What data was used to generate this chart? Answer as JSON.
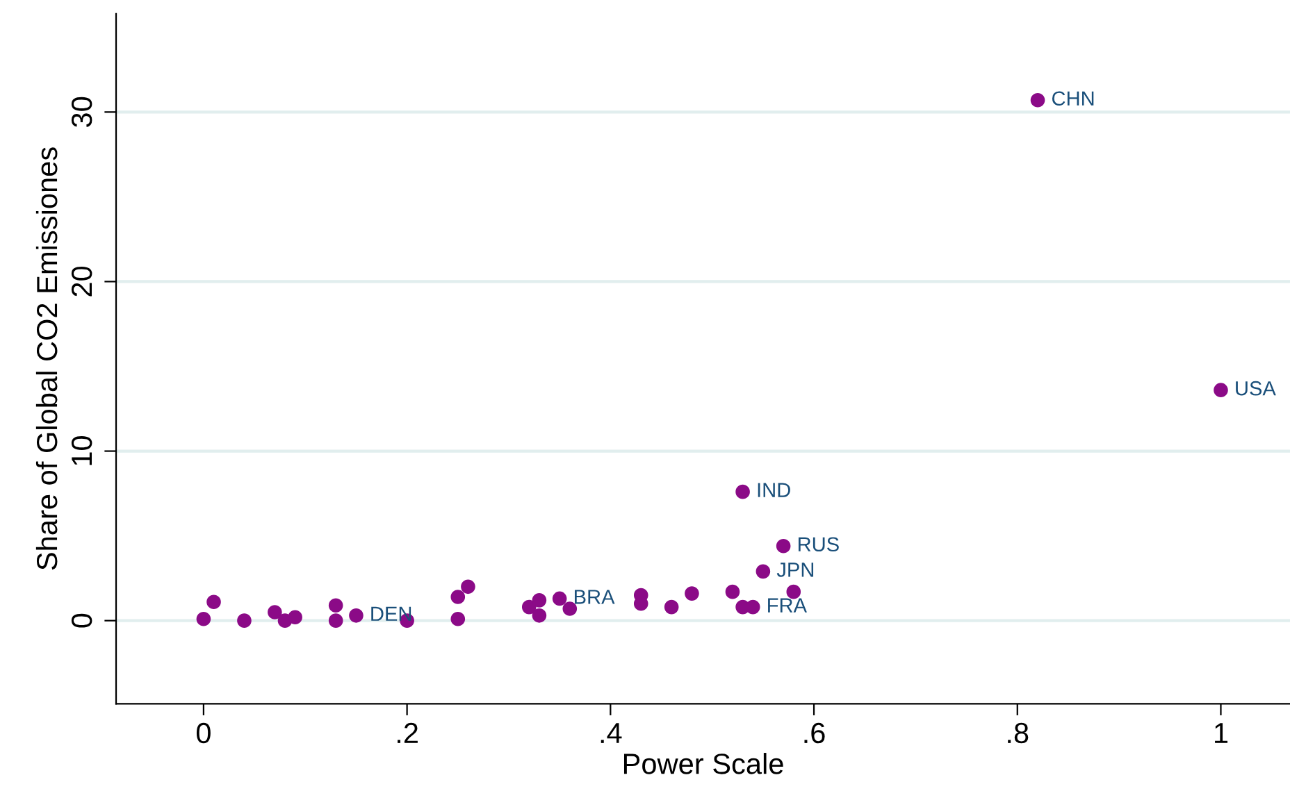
{
  "chart_data": {
    "type": "scatter",
    "xlabel": "Power Scale",
    "ylabel": "Share of Global CO2 Emissiones",
    "x": [
      0.0,
      0.01,
      0.04,
      0.07,
      0.08,
      0.09,
      0.13,
      0.13,
      0.15,
      0.2,
      0.25,
      0.25,
      0.26,
      0.32,
      0.33,
      0.33,
      0.35,
      0.36,
      0.43,
      0.43,
      0.46,
      0.48,
      0.52,
      0.53,
      0.54,
      0.53,
      0.57,
      0.55,
      0.58,
      0.82,
      1.0
    ],
    "series": [
      {
        "color": "#8b0a87",
        "values": [
          0.1,
          1.1,
          0.0,
          0.5,
          0.0,
          0.2,
          0.9,
          0.0,
          0.3,
          0.0,
          0.1,
          1.4,
          2.0,
          0.8,
          1.2,
          0.3,
          1.3,
          0.7,
          1.5,
          1.0,
          0.8,
          1.6,
          1.7,
          0.8,
          0.8,
          7.6,
          4.4,
          2.9,
          1.7,
          30.7,
          13.6
        ],
        "value_labels": [
          null,
          null,
          null,
          null,
          null,
          null,
          null,
          null,
          "DEN",
          null,
          null,
          null,
          null,
          null,
          null,
          null,
          "BRA",
          null,
          null,
          null,
          null,
          null,
          null,
          null,
          "FRA",
          "IND",
          "RUS",
          "JPN",
          null,
          "CHN",
          "USA"
        ]
      }
    ],
    "marker": "circle",
    "xlim": [
      -0.086,
      1.068
    ],
    "ylim": [
      -4.9,
      35.8
    ],
    "xticks": [
      0,
      {
        "value": 0.2,
        "label": ".2"
      },
      {
        "value": 0.4,
        "label": ".4"
      },
      {
        "value": 0.6,
        "label": ".6"
      },
      {
        "value": 0.8,
        "label": ".8"
      },
      1
    ],
    "yticks": [
      0,
      10,
      20,
      30
    ],
    "grid": "y"
  }
}
